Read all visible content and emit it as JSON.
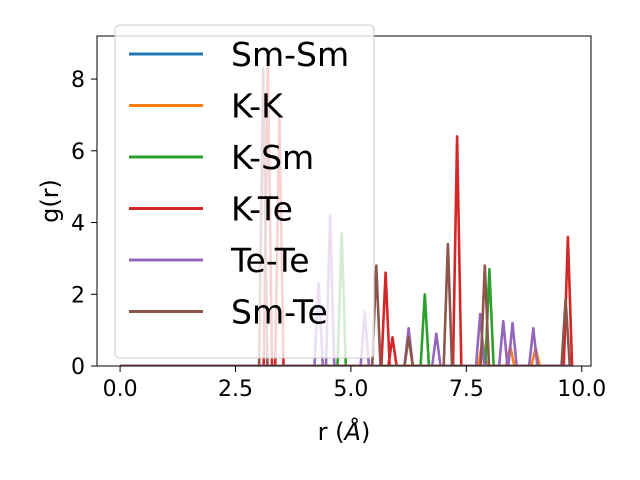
{
  "chart_data": {
    "type": "line",
    "xlabel_prefix": "r (",
    "xlabel_unit": "Å",
    "xlabel_suffix": ")",
    "ylabel": "g(r)",
    "xlim": [
      -0.5,
      10.2
    ],
    "ylim": [
      0,
      9.2
    ],
    "x_ticks": [
      0.0,
      2.5,
      5.0,
      7.5,
      10.0
    ],
    "x_tick_labels": [
      "0.0",
      "2.5",
      "5.0",
      "7.5",
      "10.0"
    ],
    "y_ticks": [
      0,
      2,
      4,
      6,
      8
    ],
    "y_tick_labels": [
      "0",
      "2",
      "4",
      "6",
      "8"
    ],
    "legend_position": "upper-left",
    "x_range": [
      0.0,
      9.8
    ],
    "series": [
      {
        "name": "Sm-Sm",
        "color": "#1f77b4",
        "peaks": []
      },
      {
        "name": "K-K",
        "color": "#ff7f0e",
        "peaks": [
          [
            7.85,
            0.7
          ],
          [
            8.45,
            0.55
          ],
          [
            9.0,
            0.5
          ]
        ]
      },
      {
        "name": "K-Sm",
        "color": "#2ca02c",
        "peaks": [
          [
            4.8,
            3.7
          ],
          [
            6.6,
            2.0
          ],
          [
            8.0,
            2.7
          ]
        ]
      },
      {
        "name": "K-Te",
        "color": "#d62728",
        "peaks": [
          [
            3.2,
            8.6
          ],
          [
            3.45,
            7.0
          ],
          [
            5.75,
            2.6
          ],
          [
            5.9,
            0.8
          ],
          [
            7.3,
            6.4
          ],
          [
            9.7,
            3.6
          ]
        ]
      },
      {
        "name": "Te-Te",
        "color": "#9467bd",
        "peaks": [
          [
            4.3,
            2.3
          ],
          [
            4.55,
            4.2
          ],
          [
            5.3,
            1.5
          ],
          [
            6.25,
            1.05
          ],
          [
            6.85,
            0.9
          ],
          [
            7.8,
            1.45
          ],
          [
            8.3,
            1.25
          ],
          [
            8.5,
            1.2
          ],
          [
            8.95,
            1.05
          ]
        ]
      },
      {
        "name": "Sm-Te",
        "color": "#8c564b",
        "peaks": [
          [
            3.1,
            8.3
          ],
          [
            5.55,
            2.8
          ],
          [
            6.25,
            0.8
          ],
          [
            7.1,
            3.4
          ],
          [
            7.9,
            2.8
          ],
          [
            9.65,
            1.85
          ]
        ]
      }
    ]
  }
}
